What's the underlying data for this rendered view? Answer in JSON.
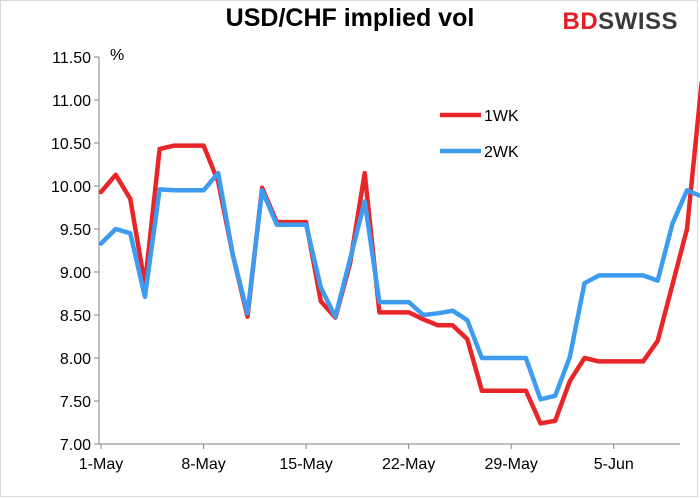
{
  "logo": {
    "part1": "BD",
    "part2": "SWISS"
  },
  "chart_data": {
    "type": "line",
    "title": "USD/CHF implied vol",
    "ylabel": "%",
    "xlabel": "",
    "ylim": [
      7.0,
      11.5
    ],
    "yticks": [
      "7.00",
      "7.50",
      "8.00",
      "8.50",
      "9.00",
      "9.50",
      "10.00",
      "10.50",
      "11.00",
      "11.50"
    ],
    "xtick_labels": [
      "1-May",
      "8-May",
      "15-May",
      "22-May",
      "29-May",
      "5-Jun"
    ],
    "xtick_index": [
      0,
      7,
      14,
      21,
      28,
      35
    ],
    "grid": false,
    "legend_position": "top-right",
    "series": [
      {
        "name": "1WK",
        "color": "#e8262a",
        "values": [
          9.93,
          10.13,
          9.85,
          8.85,
          10.43,
          10.47,
          10.47,
          10.47,
          10.05,
          9.2,
          8.48,
          9.98,
          9.58,
          9.58,
          9.58,
          8.66,
          8.47,
          9.1,
          10.15,
          8.53,
          8.53,
          8.53,
          8.45,
          8.38,
          8.38,
          8.22,
          7.62,
          7.62,
          7.62,
          7.62,
          7.24,
          7.27,
          7.73,
          8.0,
          7.96,
          7.96,
          7.96,
          7.96,
          8.2,
          8.85,
          9.5,
          11.2
        ]
      },
      {
        "name": "2WK",
        "color": "#3d9bf0",
        "values": [
          9.33,
          9.5,
          9.45,
          8.71,
          9.96,
          9.95,
          9.95,
          9.95,
          10.15,
          9.2,
          8.52,
          9.95,
          9.55,
          9.55,
          9.55,
          8.82,
          8.48,
          9.15,
          9.82,
          8.65,
          8.65,
          8.65,
          8.5,
          8.52,
          8.55,
          8.44,
          8.0,
          8.0,
          8.0,
          8.0,
          7.52,
          7.56,
          8.01,
          8.87,
          8.96,
          8.96,
          8.96,
          8.96,
          8.9,
          9.56,
          9.95,
          9.88
        ]
      }
    ]
  }
}
